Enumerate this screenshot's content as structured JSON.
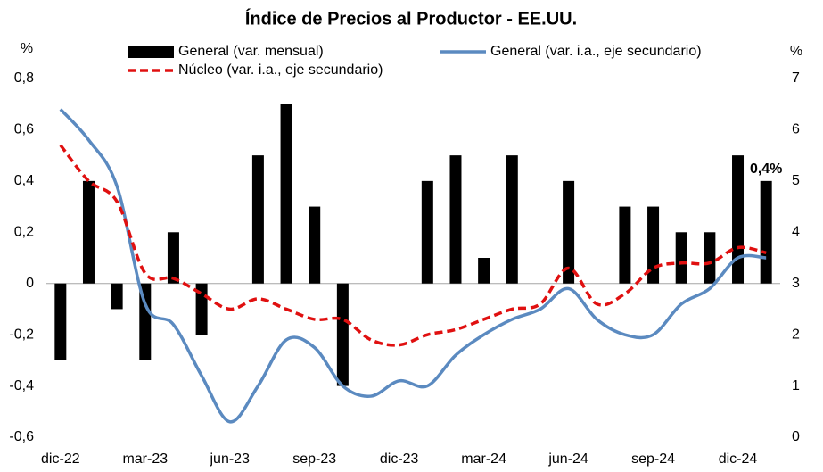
{
  "chart_data": {
    "type": "bar_line",
    "title": "Índice de Precios al Productor - EE.UU.",
    "categories": [
      "dic-22",
      null,
      null,
      "mar-23",
      null,
      null,
      "jun-23",
      null,
      null,
      "sep-23",
      null,
      null,
      "dic-23",
      null,
      null,
      "mar-24",
      null,
      null,
      "jun-24",
      null,
      null,
      "sep-24",
      null,
      null,
      "dic-24",
      null
    ],
    "series": [
      {
        "name": "General (var. mensual)",
        "kind": "bar",
        "color": "#000000",
        "values": [
          -0.3,
          0.4,
          -0.1,
          -0.3,
          0.2,
          -0.2,
          0,
          0.5,
          0.7,
          0.3,
          -0.4,
          0,
          0,
          0.4,
          0.5,
          0.1,
          0.5,
          0,
          0.4,
          0,
          0.3,
          0.3,
          0.2,
          0.2,
          0.5,
          0.4
        ],
        "value_labels": [
          null,
          null,
          null,
          null,
          null,
          null,
          null,
          null,
          null,
          null,
          null,
          null,
          null,
          null,
          null,
          null,
          null,
          null,
          null,
          null,
          null,
          null,
          null,
          null,
          null,
          "0,4%"
        ]
      },
      {
        "name": "General (var. i.a., eje secundario)",
        "kind": "line",
        "axis": "y2",
        "color": "#5b8ac0",
        "values": [
          6.4,
          5.8,
          4.9,
          2.6,
          2.2,
          1.2,
          0.3,
          1.0,
          1.9,
          1.75,
          1.0,
          0.8,
          1.1,
          1.0,
          1.6,
          2.0,
          2.3,
          2.5,
          2.9,
          2.3,
          2.0,
          2.0,
          2.6,
          2.9,
          3.5,
          3.5
        ]
      },
      {
        "name": "Núcleo (var. i.a., eje secundario)",
        "kind": "dashed-line",
        "axis": "y2",
        "color": "#e01010",
        "values": [
          5.7,
          5.0,
          4.6,
          3.2,
          3.1,
          2.8,
          2.5,
          2.7,
          2.5,
          2.3,
          2.3,
          1.9,
          1.8,
          2.0,
          2.1,
          2.3,
          2.5,
          2.6,
          3.3,
          2.6,
          2.8,
          3.3,
          3.4,
          3.4,
          3.7,
          3.6
        ]
      }
    ],
    "ylabel": "%",
    "y2label": "%",
    "ylim": [
      -0.6,
      0.8
    ],
    "yticks": [
      {
        "value": -0.6,
        "label": "-0,6"
      },
      {
        "value": -0.4,
        "label": "-0,4"
      },
      {
        "value": -0.2,
        "label": "-0,2"
      },
      0,
      {
        "value": 0.2,
        "label": "0,2"
      },
      {
        "value": 0.4,
        "label": "0,4"
      },
      {
        "value": 0.6,
        "label": "0,6"
      },
      {
        "value": 0.8,
        "label": "0,8"
      }
    ],
    "y2lim": [
      0,
      7
    ],
    "y2ticks": [
      0,
      1,
      2,
      3,
      4,
      5,
      6,
      7
    ],
    "grid": false
  }
}
